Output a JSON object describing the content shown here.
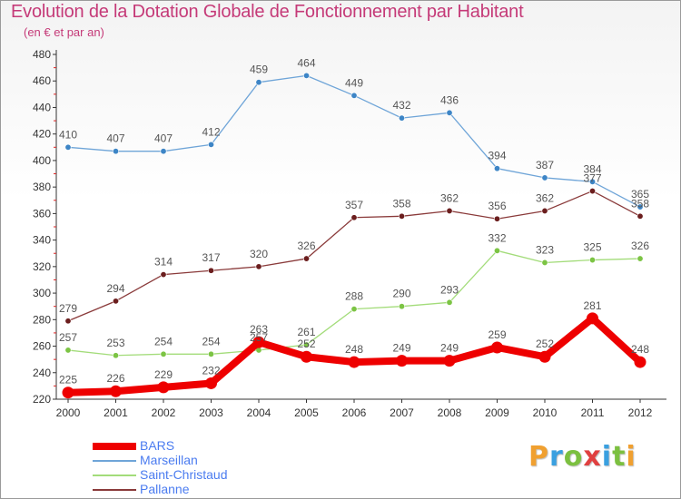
{
  "title": "Evolution de la Dotation Globale de Fonctionnement par Habitant",
  "subtitle": "(en € et par an)",
  "logo": {
    "text": "Proxiti",
    "letter_colors": [
      "#f0a030",
      "#3aa0e0",
      "#7cc040",
      "#e04040",
      "#3aa0e0",
      "#7cc040",
      "#f0a030"
    ]
  },
  "chart_data": {
    "type": "line",
    "title": "Evolution de la Dotation Globale de Fonctionnement par Habitant",
    "subtitle": "(en € et par an)",
    "x": [
      "2000",
      "2001",
      "2002",
      "2003",
      "2004",
      "2005",
      "2006",
      "2007",
      "2008",
      "2009",
      "2010",
      "2011",
      "2012"
    ],
    "ylim": [
      220,
      480
    ],
    "yticks": [
      220,
      240,
      260,
      280,
      300,
      320,
      340,
      360,
      380,
      400,
      420,
      440,
      460,
      480
    ],
    "grid": false,
    "legend_position": "bottom-left",
    "series": [
      {
        "name": "BARS",
        "color": "#ee0000",
        "emphasis": true,
        "values": [
          225,
          226,
          229,
          232,
          263,
          252,
          248,
          249,
          249,
          259,
          252,
          281,
          248
        ]
      },
      {
        "name": "Marseillan",
        "color": "#6fa5d8",
        "marker": "#3d85c6",
        "values": [
          410,
          407,
          407,
          412,
          459,
          464,
          449,
          432,
          436,
          394,
          387,
          384,
          365
        ]
      },
      {
        "name": "Saint-Christaud",
        "color": "#a3dc7a",
        "marker": "#7cc444",
        "values": [
          257,
          253,
          254,
          254,
          257,
          261,
          288,
          290,
          293,
          332,
          323,
          325,
          326
        ]
      },
      {
        "name": "Pallanne",
        "color": "#8a3a3a",
        "marker": "#6b1e1e",
        "values": [
          279,
          294,
          314,
          317,
          320,
          326,
          357,
          358,
          362,
          356,
          362,
          377,
          358
        ]
      }
    ]
  }
}
